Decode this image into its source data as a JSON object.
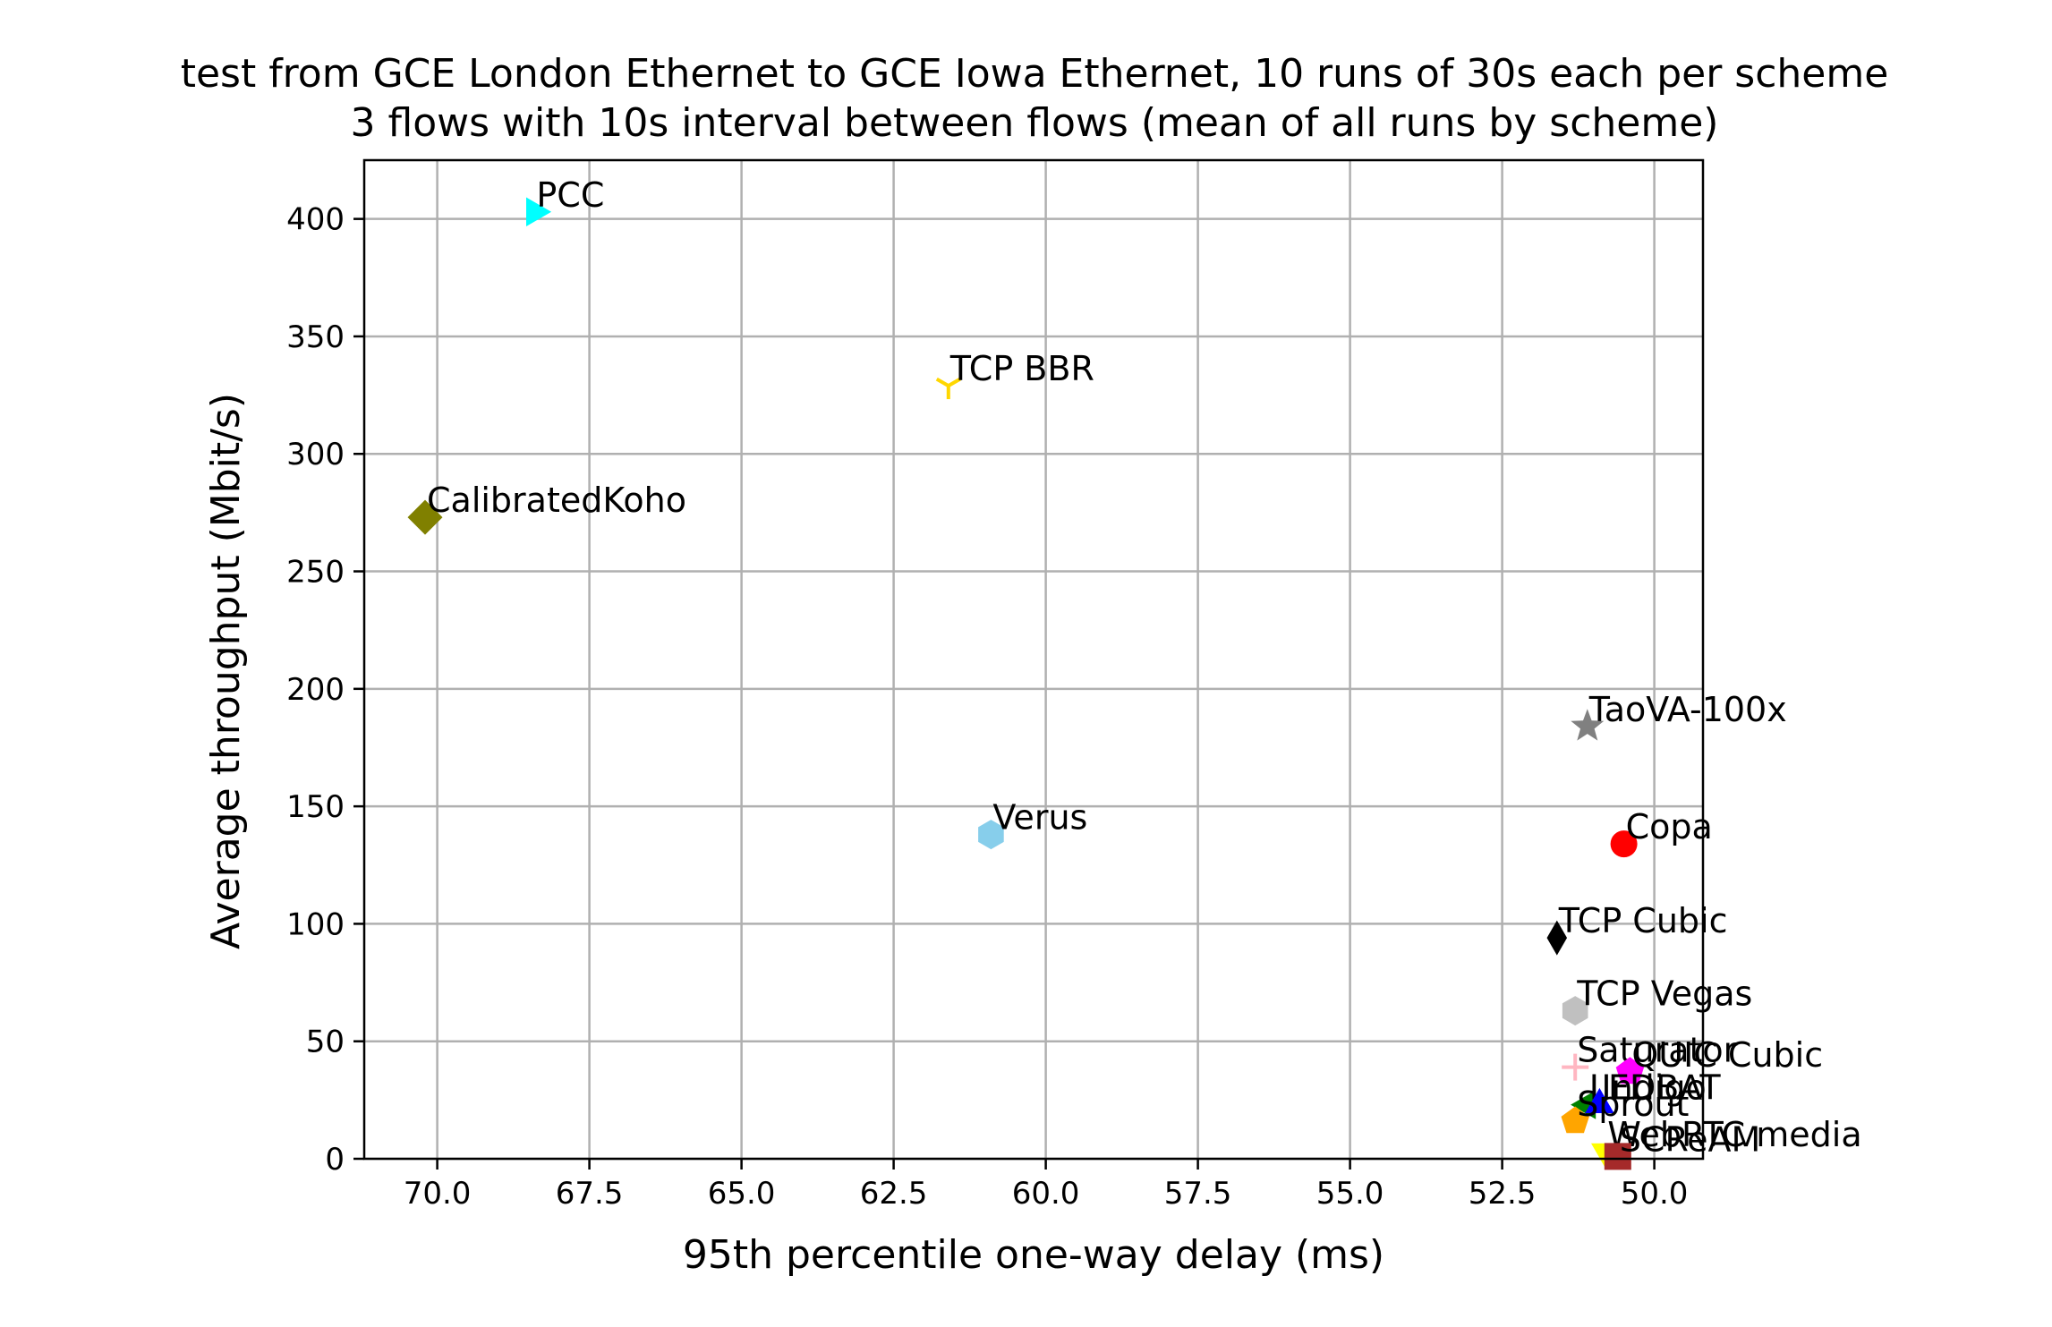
{
  "chart_data": {
    "type": "scatter",
    "title": "test from GCE London Ethernet to GCE Iowa Ethernet, 10 runs of 30s each per scheme",
    "subtitle": "3 flows with 10s interval between flows (mean of all runs by scheme)",
    "xlabel": "95th percentile one-way delay (ms)",
    "ylabel": "Average throughput (Mbit/s)",
    "x_inverted": true,
    "xlim": [
      71.2,
      49.2
    ],
    "ylim": [
      0,
      425
    ],
    "grid": true,
    "x_ticks": [
      "70.0",
      "67.5",
      "65.0",
      "62.5",
      "60.0",
      "57.5",
      "55.0",
      "52.5",
      "50.0"
    ],
    "y_ticks": [
      "0",
      "50",
      "100",
      "150",
      "200",
      "250",
      "300",
      "350",
      "400"
    ],
    "points": [
      {
        "name": "PCC",
        "x": 68.4,
        "y": 403,
        "color": "#00ffff",
        "marker": "triangle-right"
      },
      {
        "name": "TCP BBR",
        "x": 61.6,
        "y": 329,
        "color": "#ffd700",
        "marker": "tri-down"
      },
      {
        "name": "CalibratedKoho",
        "x": 70.2,
        "y": 273,
        "color": "#808000",
        "marker": "diamond"
      },
      {
        "name": "TaoVA-100x",
        "x": 51.1,
        "y": 184,
        "color": "#808080",
        "marker": "star"
      },
      {
        "name": "Verus",
        "x": 60.9,
        "y": 138,
        "color": "#87ceeb",
        "marker": "hexagon"
      },
      {
        "name": "Copa",
        "x": 50.5,
        "y": 134,
        "color": "#ff0000",
        "marker": "circle"
      },
      {
        "name": "TCP Cubic",
        "x": 51.6,
        "y": 94,
        "color": "#000000",
        "marker": "thin-diamond"
      },
      {
        "name": "TCP Vegas",
        "x": 51.3,
        "y": 63,
        "color": "#c0c0c0",
        "marker": "hexagon"
      },
      {
        "name": "Saturator",
        "x": 51.3,
        "y": 39,
        "color": "#ffb6c1",
        "marker": "plus"
      },
      {
        "name": "QUIC Cubic",
        "x": 50.4,
        "y": 37,
        "color": "#ff00ff",
        "marker": "pentagon"
      },
      {
        "name": "LEDBAT",
        "x": 51.1,
        "y": 23,
        "color": "#008000",
        "marker": "triangle-left"
      },
      {
        "name": "Indigo",
        "x": 50.9,
        "y": 23,
        "color": "#0000ff",
        "marker": "triangle-up"
      },
      {
        "name": "Sprout",
        "x": 51.3,
        "y": 16,
        "color": "#ffa500",
        "marker": "pentagon"
      },
      {
        "name": "WebRTC media",
        "x": 50.8,
        "y": 3,
        "color": "#ffff00",
        "marker": "triangle-down"
      },
      {
        "name": "SCReAM",
        "x": 50.6,
        "y": 1,
        "color": "#a52a2a",
        "marker": "square"
      }
    ]
  }
}
